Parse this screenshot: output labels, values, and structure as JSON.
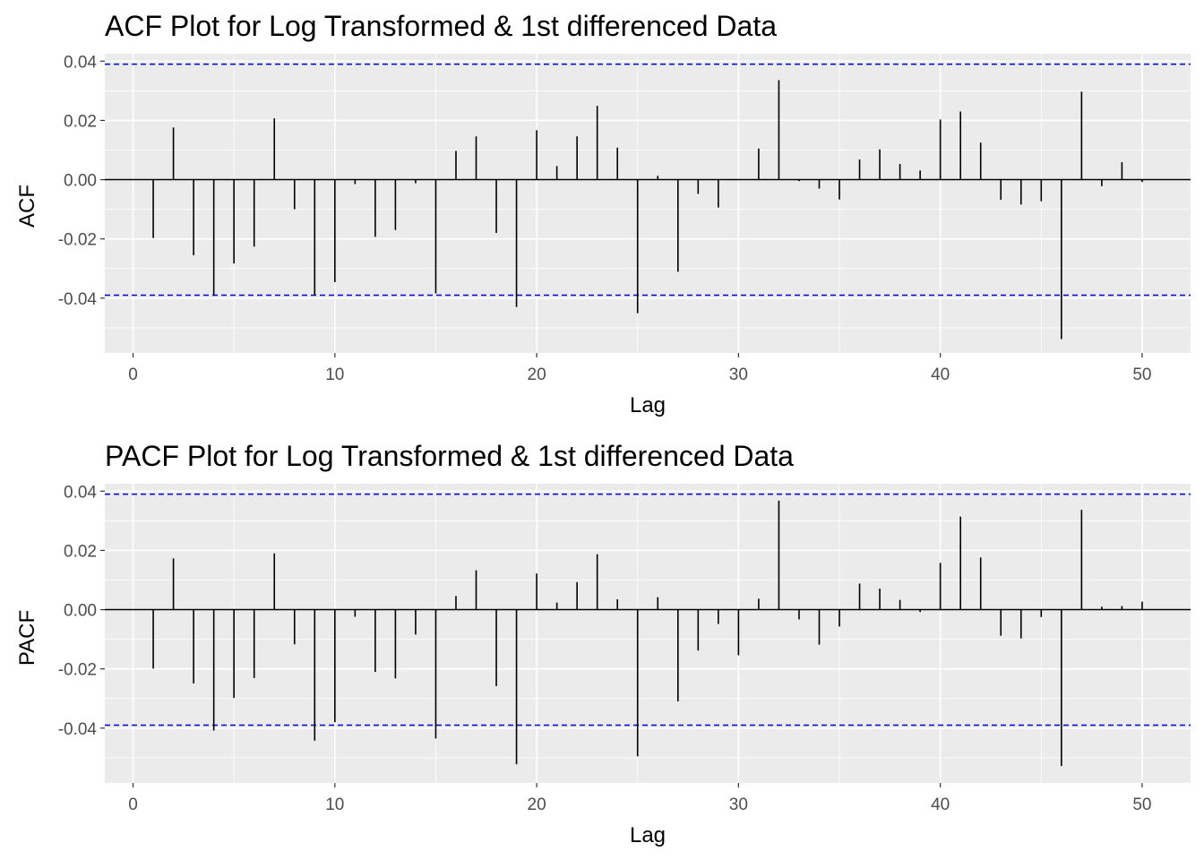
{
  "chart_data": [
    {
      "type": "bar",
      "title": "ACF Plot for Log Transformed & 1st differenced Data",
      "xlabel": "Lag",
      "ylabel": "ACF",
      "xlim": [
        -1.4,
        52.4
      ],
      "ylim": [
        -0.0585,
        0.0425
      ],
      "xticks": [
        0,
        10,
        20,
        30,
        40,
        50
      ],
      "yticks": [
        0.04,
        0.02,
        0.0,
        -0.02,
        -0.04
      ],
      "ytick_labels": [
        "0.04",
        "0.02",
        "0.00",
        "-0.02",
        "-0.04"
      ],
      "confidence_bounds": [
        0.039,
        -0.039
      ],
      "confidence_color": "#0000cc",
      "bar_color": "#000000",
      "grid": true,
      "lags": [
        1,
        2,
        3,
        4,
        5,
        6,
        7,
        8,
        9,
        10,
        11,
        12,
        13,
        14,
        15,
        16,
        17,
        18,
        19,
        20,
        21,
        22,
        23,
        24,
        25,
        26,
        27,
        28,
        29,
        30,
        31,
        32,
        33,
        34,
        35,
        36,
        37,
        38,
        39,
        40,
        41,
        42,
        43,
        44,
        45,
        46,
        47,
        48,
        49,
        50
      ],
      "values": [
        -0.0197,
        0.0176,
        -0.0255,
        -0.039,
        -0.0283,
        -0.0226,
        0.0207,
        -0.01,
        -0.0391,
        -0.0346,
        -0.0015,
        -0.0193,
        -0.017,
        -0.0012,
        -0.0384,
        0.0097,
        0.0146,
        -0.018,
        -0.043,
        0.0167,
        0.0046,
        0.0146,
        0.0249,
        0.0108,
        -0.0451,
        0.0013,
        -0.0311,
        -0.0048,
        -0.0094,
        0.0,
        0.0105,
        0.0336,
        -0.0005,
        -0.003,
        -0.0067,
        0.0068,
        0.0102,
        0.0053,
        0.0031,
        0.0203,
        0.023,
        0.0125,
        -0.0068,
        -0.0084,
        -0.0073,
        -0.0538,
        0.0297,
        -0.0022,
        0.0059,
        -0.0008
      ]
    },
    {
      "type": "bar",
      "title": "PACF Plot for Log Transformed & 1st differenced Data",
      "xlabel": "Lag",
      "ylabel": "PACF",
      "xlim": [
        -1.4,
        52.4
      ],
      "ylim": [
        -0.0585,
        0.0425
      ],
      "xticks": [
        0,
        10,
        20,
        30,
        40,
        50
      ],
      "yticks": [
        0.04,
        0.02,
        0.0,
        -0.02,
        -0.04
      ],
      "ytick_labels": [
        "0.04",
        "0.02",
        "0.00",
        "-0.02",
        "-0.04"
      ],
      "confidence_bounds": [
        0.039,
        -0.039
      ],
      "confidence_color": "#0000cc",
      "bar_color": "#000000",
      "grid": true,
      "lags": [
        1,
        2,
        3,
        4,
        5,
        6,
        7,
        8,
        9,
        10,
        11,
        12,
        13,
        14,
        15,
        16,
        17,
        18,
        19,
        20,
        21,
        22,
        23,
        24,
        25,
        26,
        27,
        28,
        29,
        30,
        31,
        32,
        33,
        34,
        35,
        36,
        37,
        38,
        39,
        40,
        41,
        42,
        43,
        44,
        45,
        46,
        47,
        48,
        49,
        50
      ],
      "values": [
        -0.0199,
        0.0173,
        -0.0249,
        -0.0408,
        -0.0298,
        -0.0231,
        0.019,
        -0.0117,
        -0.0442,
        -0.038,
        -0.0024,
        -0.021,
        -0.0232,
        -0.0084,
        -0.0435,
        0.0046,
        0.0133,
        -0.0258,
        -0.0522,
        0.0122,
        0.0024,
        0.0093,
        0.0187,
        0.0035,
        -0.0495,
        0.0042,
        -0.031,
        -0.0138,
        -0.0048,
        -0.0154,
        0.0037,
        0.0368,
        -0.0033,
        -0.0118,
        -0.0057,
        0.0088,
        0.0071,
        0.0033,
        -0.0008,
        0.0158,
        0.0314,
        0.0176,
        -0.0088,
        -0.0097,
        -0.0025,
        -0.0528,
        0.0337,
        0.001,
        0.0012,
        0.0027
      ]
    }
  ]
}
